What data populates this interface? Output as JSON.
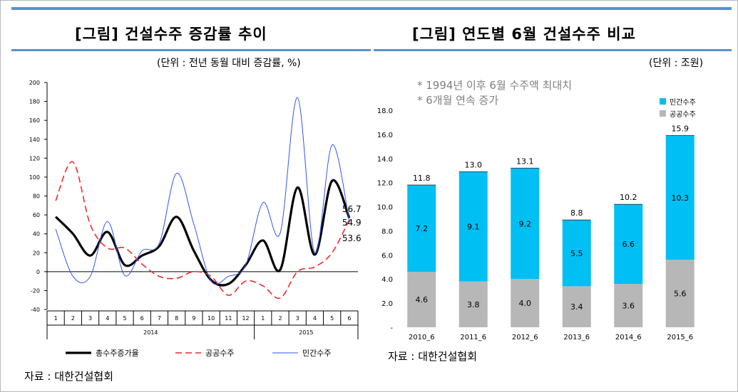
{
  "left": {
    "title": "[그림] 건설수주 증감률 추이",
    "unit": "(단위 : 전년 동월 대비 증감률, %)",
    "source": "자료 : 대한건설협회"
  },
  "right": {
    "title": "[그림] 연도별 6월 건설수주 비교",
    "unit": "(단위 : 조원)",
    "source": "자료 : 대한건설협회",
    "notes": [
      "* 1994년 이후 6월 수주액 최대치",
      "* 6개월 연속 증가"
    ]
  },
  "colors": {
    "total": "#000000",
    "public": "#ee2a2a",
    "private": "#3355ee",
    "bar_private": "#00bff3",
    "bar_public": "#b7b7b7",
    "rule": "#5b8fd1"
  },
  "chart_data": [
    {
      "type": "line",
      "title": "[그림] 건설수주 증감률 추이",
      "ylabel": "전년 동월 대비 증감률, %",
      "ylim": [
        -40,
        200
      ],
      "yticks": [
        -40,
        -20,
        0,
        20,
        40,
        60,
        80,
        100,
        120,
        140,
        160,
        180,
        200
      ],
      "categories": [
        "1",
        "2",
        "3",
        "4",
        "5",
        "6",
        "7",
        "8",
        "9",
        "10",
        "11",
        "12",
        "1",
        "2",
        "3",
        "4",
        "5",
        "6"
      ],
      "year_groups": [
        {
          "label": "2014",
          "start": 0,
          "end": 11
        },
        {
          "label": "2015",
          "start": 12,
          "end": 17
        }
      ],
      "series": [
        {
          "name": "총수주증가율",
          "key": "total",
          "values": [
            58,
            40,
            17,
            42,
            7,
            17,
            27,
            58,
            22,
            -9,
            -13,
            7,
            33,
            2,
            89,
            18,
            96,
            56.7
          ]
        },
        {
          "name": "공공수주",
          "key": "public",
          "values": [
            75,
            116,
            50,
            25,
            25,
            8,
            -5,
            -7,
            0,
            -5,
            -25,
            -10,
            -15,
            -28,
            0,
            5,
            20,
            54.9
          ]
        },
        {
          "name": "민간수주",
          "key": "private",
          "values": [
            45,
            -5,
            -5,
            53,
            -4,
            22,
            30,
            104,
            50,
            -10,
            -5,
            7,
            73,
            41,
            184,
            20,
            134,
            53.6
          ]
        }
      ],
      "end_labels": [
        "56.7",
        "54.9",
        "53.6"
      ],
      "legend": [
        "총수주증가율",
        "공공수주",
        "민간수주"
      ]
    },
    {
      "type": "bar",
      "stacked": true,
      "title": "[그림] 연도별 6월 건설수주 비교",
      "ylabel": "조원",
      "ylim": [
        0,
        18
      ],
      "yticks": [
        "-",
        "2.0",
        "4.0",
        "6.0",
        "8.0",
        "10.0",
        "12.0",
        "14.0",
        "16.0",
        "18.0"
      ],
      "categories": [
        "2010_6",
        "2011_6",
        "2012_6",
        "2013_6",
        "2014_6",
        "2015_6"
      ],
      "series": [
        {
          "name": "공공수주",
          "key": "public",
          "values": [
            4.6,
            3.8,
            4.0,
            3.4,
            3.6,
            5.6
          ],
          "labels": [
            "4.6",
            "3.8",
            "4.0",
            "3.4",
            "3.6",
            "5.6"
          ]
        },
        {
          "name": "민간수주",
          "key": "private",
          "values": [
            7.2,
            9.1,
            9.2,
            5.5,
            6.6,
            10.3
          ],
          "labels": [
            "7.2",
            "9.1",
            "9.2",
            "5.5",
            "6.6",
            "10.3"
          ]
        }
      ],
      "totals": [
        11.8,
        13.0,
        13.1,
        8.8,
        10.2,
        15.9
      ],
      "total_labels": [
        "11.8",
        "13.0",
        "13.1",
        "8.8",
        "10.2",
        "15.9"
      ],
      "legend": [
        "민간수주",
        "공공수주"
      ]
    }
  ]
}
